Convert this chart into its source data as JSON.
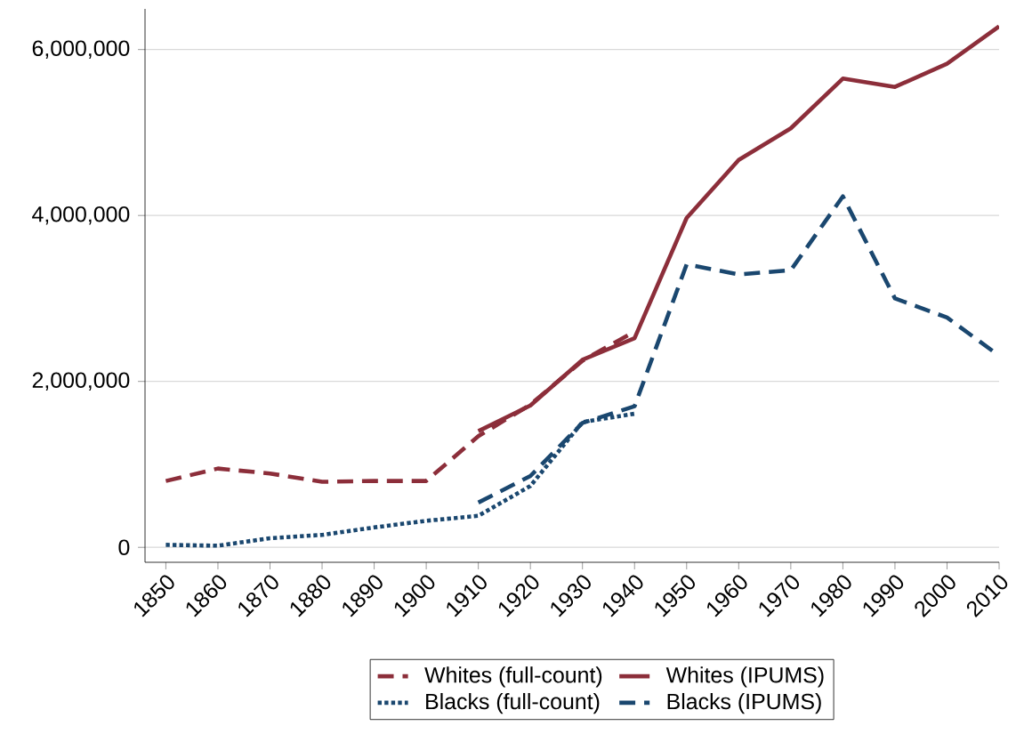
{
  "chart_data": {
    "type": "line",
    "xlim": [
      1846,
      2010
    ],
    "ylim": [
      -180000,
      6490000
    ],
    "xticks": [
      1850,
      1860,
      1870,
      1880,
      1890,
      1900,
      1910,
      1920,
      1930,
      1940,
      1950,
      1960,
      1970,
      1980,
      1990,
      2000,
      2010
    ],
    "yticks": [
      {
        "value": 0,
        "label": "0"
      },
      {
        "value": 2000000,
        "label": "2,000,000"
      },
      {
        "value": 4000000,
        "label": "4,000,000"
      },
      {
        "value": 6000000,
        "label": "6,000,000"
      }
    ],
    "grid": "y",
    "legend": "bottom",
    "marker": "none",
    "series": [
      {
        "name": "Whites (full-count)",
        "color": "#8c2e3a",
        "line_style": "dashed",
        "x": [
          1850,
          1860,
          1870,
          1880,
          1890,
          1900,
          1910,
          1920,
          1930,
          1940
        ],
        "values": [
          800000,
          950000,
          890000,
          790000,
          800000,
          800000,
          1340000,
          1720000,
          2250000,
          2600000
        ]
      },
      {
        "name": "Whites (IPUMS)",
        "color": "#8c2e3a",
        "line_style": "solid",
        "x": [
          1910,
          1920,
          1930,
          1940,
          1950,
          1960,
          1970,
          1980,
          1990,
          2000,
          2010
        ],
        "values": [
          1400000,
          1710000,
          2260000,
          2520000,
          3970000,
          4670000,
          5050000,
          5650000,
          5550000,
          5830000,
          6280000
        ]
      },
      {
        "name": "Blacks (full-count)",
        "color": "#1a476f",
        "line_style": "dotted",
        "x": [
          1850,
          1860,
          1870,
          1880,
          1890,
          1900,
          1910,
          1920,
          1930,
          1940
        ],
        "values": [
          30000,
          20000,
          110000,
          150000,
          240000,
          320000,
          380000,
          740000,
          1510000,
          1610000
        ]
      },
      {
        "name": "Blacks (IPUMS)",
        "color": "#1a476f",
        "line_style": "dashed",
        "x": [
          1910,
          1920,
          1930,
          1940,
          1950,
          1960,
          1970,
          1980,
          1990,
          2000,
          2010
        ],
        "values": [
          540000,
          860000,
          1500000,
          1700000,
          3410000,
          3290000,
          3340000,
          4230000,
          3000000,
          2770000,
          2310000
        ]
      }
    ]
  }
}
